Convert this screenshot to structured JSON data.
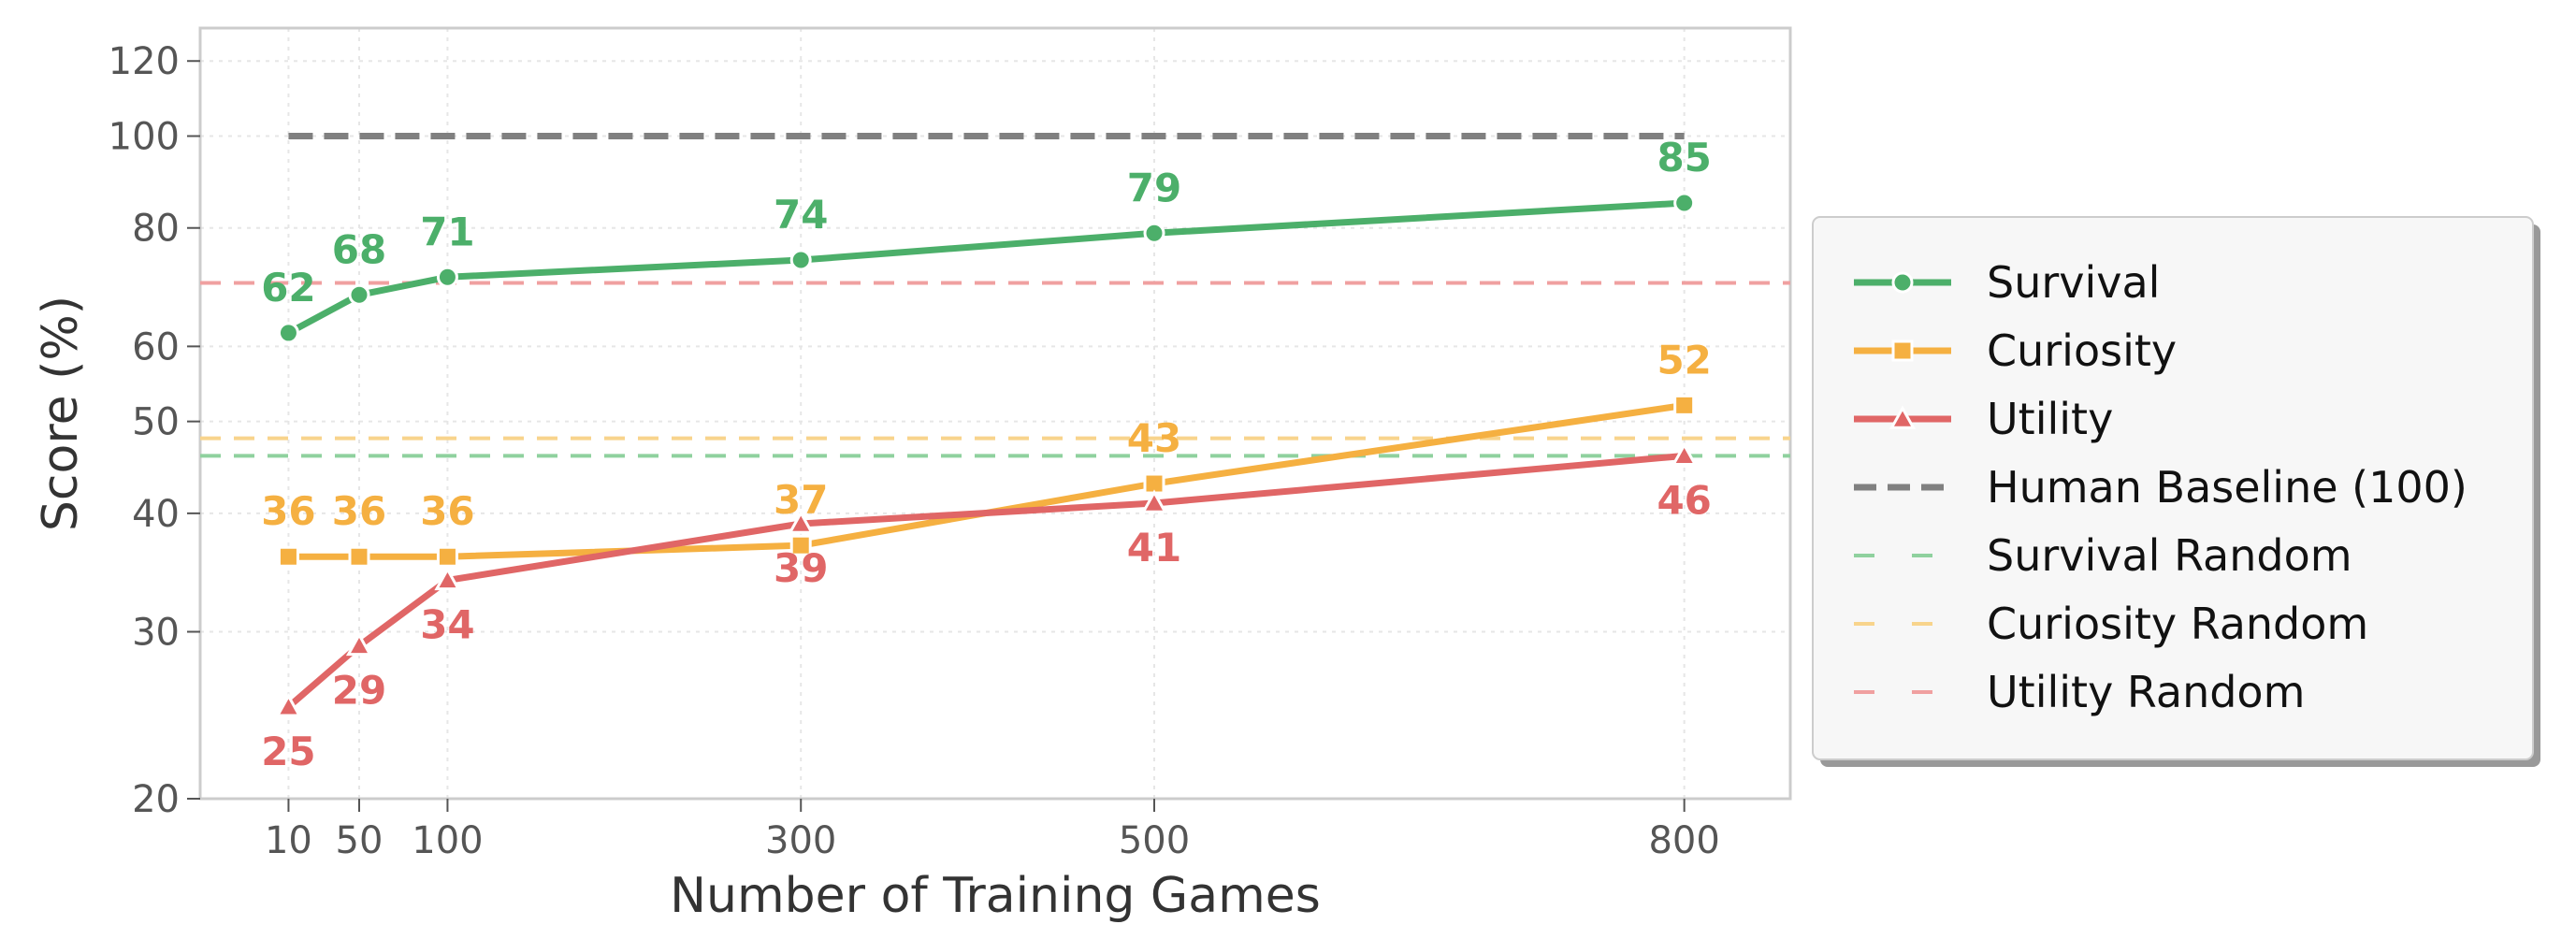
{
  "chart_data": {
    "type": "line",
    "title": "",
    "xlabel": "Number of Training Games",
    "ylabel": "Score (%)",
    "x": [
      10,
      50,
      100,
      300,
      500,
      800
    ],
    "x_tick_labels": [
      "10",
      "50",
      "100",
      "300",
      "500",
      "800"
    ],
    "xlim": [
      -40,
      860
    ],
    "y_scale": "log",
    "ylim": [
      20,
      130
    ],
    "y_ticks": [
      20,
      30,
      40,
      50,
      60,
      80,
      100,
      120
    ],
    "y_tick_labels": [
      "20",
      "30",
      "40",
      "50",
      "60",
      "80",
      "100",
      "120"
    ],
    "grid": true,
    "legend_placement": "outside-right",
    "series": [
      {
        "name": "Survival",
        "color": "#4caf6a",
        "marker": "circle",
        "values": [
          62,
          68,
          71,
          74,
          79,
          85
        ],
        "labels": [
          "62",
          "68",
          "71",
          "74",
          "79",
          "85"
        ],
        "label_position": [
          "above",
          "above",
          "above",
          "above",
          "above",
          "above"
        ]
      },
      {
        "name": "Curiosity",
        "color": "#f5b041",
        "marker": "square",
        "values": [
          36,
          36,
          36,
          37,
          43,
          52
        ],
        "labels": [
          "36",
          "36",
          "36",
          "37",
          "43",
          "52"
        ],
        "label_position": [
          "above",
          "above",
          "above",
          "above",
          "above",
          "above"
        ]
      },
      {
        "name": "Utility",
        "color": "#e06666",
        "marker": "triangle",
        "values": [
          25,
          29,
          34,
          39,
          41,
          46
        ],
        "labels": [
          "25",
          "29",
          "34",
          "39",
          "41",
          "46"
        ],
        "label_position": [
          "below",
          "below",
          "below",
          "below",
          "below",
          "below"
        ]
      }
    ],
    "reference_lines": [
      {
        "name": "Human Baseline (100)",
        "value": 100,
        "x_range": [
          10,
          800
        ],
        "color": "#808080",
        "style": "dashed-heavy"
      },
      {
        "name": "Survival Random",
        "value": 46,
        "color": "#8fd19e",
        "style": "dashed"
      },
      {
        "name": "Curiosity Random",
        "value": 48,
        "color": "#f8d48c",
        "style": "dashed"
      },
      {
        "name": "Utility Random",
        "value": 70,
        "color": "#f0a0a0",
        "style": "dashed"
      }
    ]
  }
}
